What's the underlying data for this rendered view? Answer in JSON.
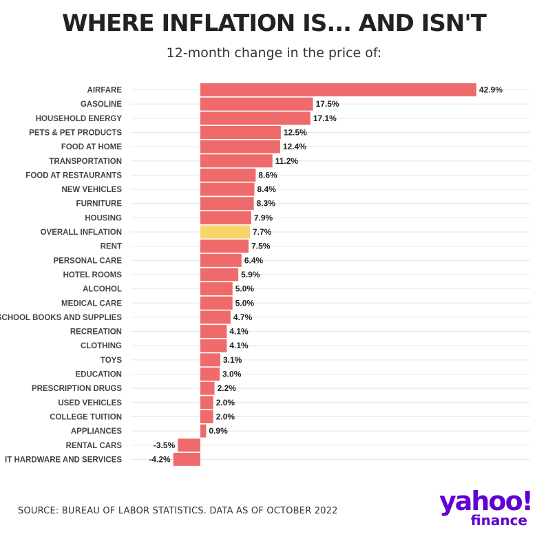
{
  "title": "WHERE INFLATION IS... AND ISN'T",
  "subtitle": "12-month change in the price of:",
  "source": "SOURCE: BUREAU OF LABOR STATISTICS. DATA AS OF OCTOBER 2022",
  "brand": {
    "name": "yahoo!",
    "sub": "finance"
  },
  "colors": {
    "bar": "#ef6b6b",
    "highlight": "#f8d56a",
    "brand": "#6001d2"
  },
  "chart_data": {
    "type": "bar",
    "orientation": "horizontal",
    "title": "WHERE INFLATION IS... AND ISN'T",
    "subtitle": "12-month change in the price of:",
    "xlabel": "",
    "ylabel": "",
    "highlight_category": "OVERALL INFLATION",
    "categories": [
      "AIRFARE",
      "GASOLINE",
      "HOUSEHOLD ENERGY",
      "PETS & PET PRODUCTS",
      "FOOD AT HOME",
      "TRANSPORTATION",
      "FOOD AT RESTAURANTS",
      "NEW VEHICLES",
      "FURNITURE",
      "HOUSING",
      "OVERALL INFLATION",
      "RENT",
      "PERSONAL CARE",
      "HOTEL ROOMS",
      "ALCOHOL",
      "MEDICAL CARE",
      "SCHOOL BOOKS AND SUPPLIES",
      "RECREATION",
      "CLOTHING",
      "TOYS",
      "EDUCATION",
      "PRESCRIPTION DRUGS",
      "USED VEHICLES",
      "COLLEGE TUITION",
      "APPLIANCES",
      "RENTAL CARS",
      "IT HARDWARE AND SERVICES"
    ],
    "values": [
      42.9,
      17.5,
      17.1,
      12.5,
      12.4,
      11.2,
      8.6,
      8.4,
      8.3,
      7.9,
      7.7,
      7.5,
      6.4,
      5.9,
      5.0,
      5.0,
      4.7,
      4.1,
      4.1,
      3.1,
      3.0,
      2.2,
      2.0,
      2.0,
      0.9,
      -3.5,
      -4.2
    ],
    "labels": [
      "42.9%",
      "17.5%",
      "17.1%",
      "12.5%",
      "12.4%",
      "11.2%",
      "8.6%",
      "8.4%",
      "8.3%",
      "7.9%",
      "7.7%",
      "7.5%",
      "6.4%",
      "5.9%",
      "5.0%",
      "5.0%",
      "4.7%",
      "4.1%",
      "4.1%",
      "3.1%",
      "3.0%",
      "2.2%",
      "2.0%",
      "2.0%",
      "0.9%",
      "-3.5%",
      "-4.2%"
    ],
    "xlim": [
      -4.2,
      42.9
    ],
    "grid": true,
    "legend": "none"
  }
}
